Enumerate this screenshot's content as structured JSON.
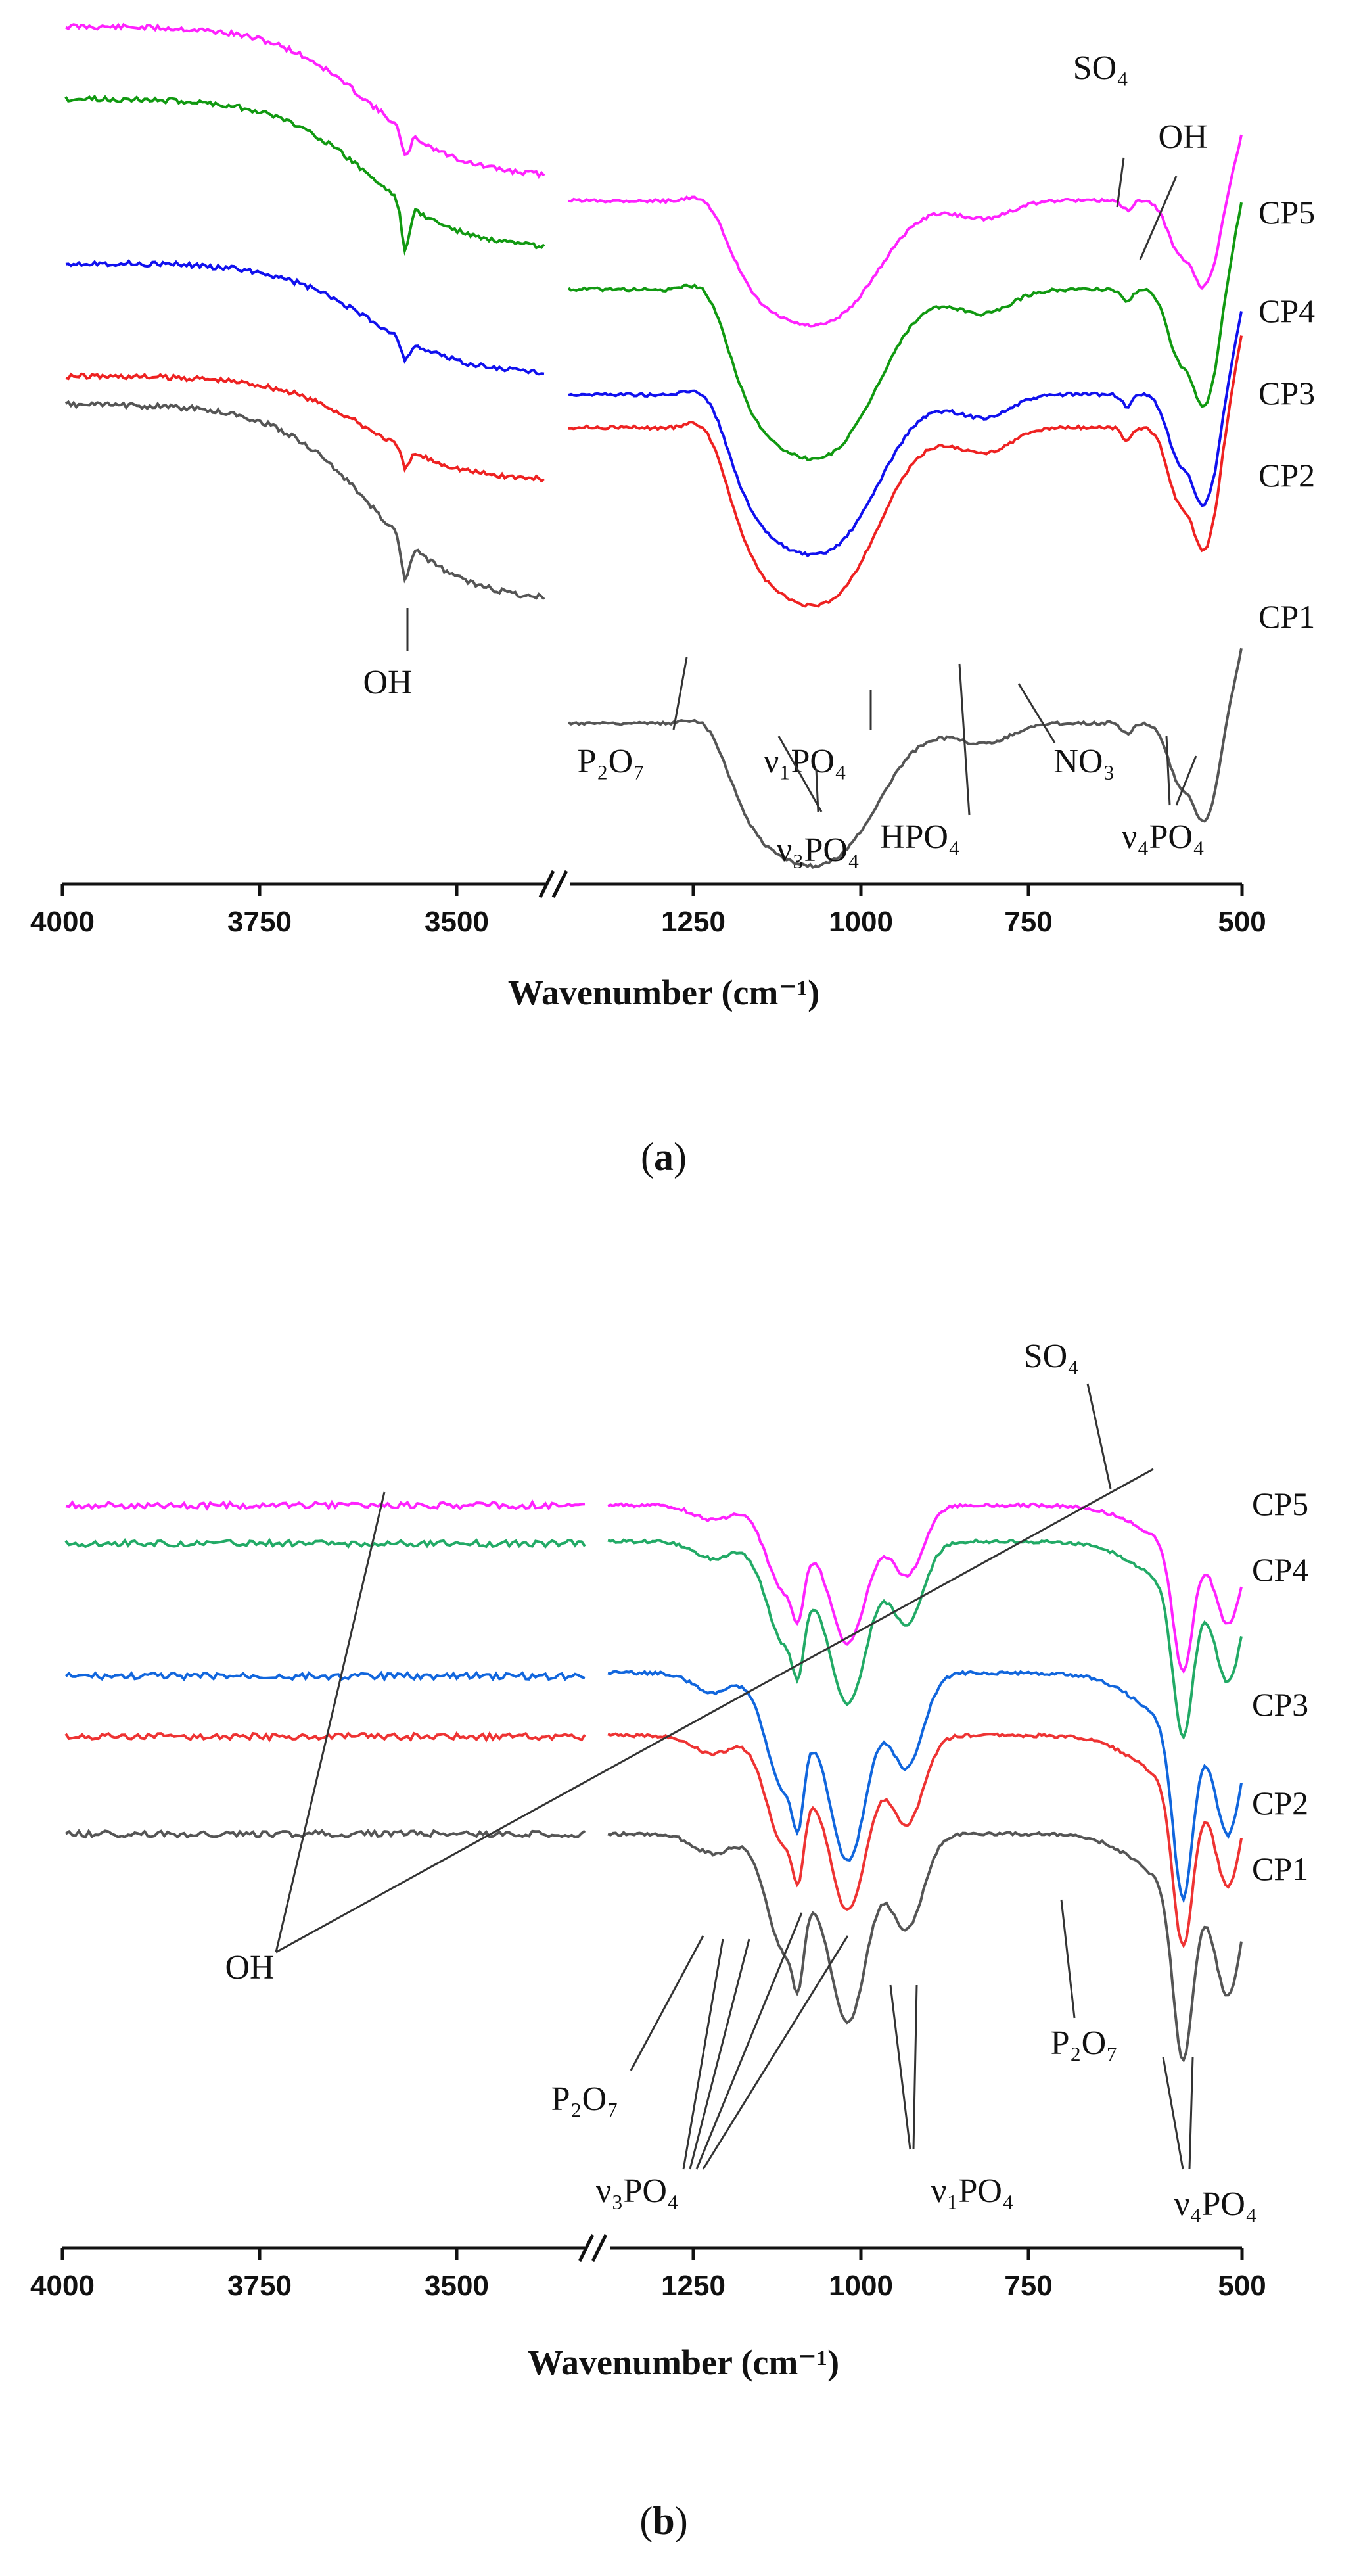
{
  "chart_data": [
    {
      "type": "line",
      "panel": "(a)",
      "panel_bold": "a",
      "xlabel": "Wavenumber (cm⁻¹)",
      "xticks": [
        "4000",
        "3750",
        "3500",
        "1250",
        "1000",
        "750",
        "500"
      ],
      "axis_break": "between 3400 and 1350 cm⁻¹",
      "series": [
        "CP5",
        "CP4",
        "CP3",
        "CP2",
        "CP1"
      ],
      "colors": {
        "CP5": "#ff22ff",
        "CP4": "#119911",
        "CP3": "#1111ee",
        "CP2": "#ee2222",
        "CP1": "#555555"
      },
      "annotations": [
        "SO₄",
        "OH",
        "OH",
        "P₂O₇",
        "ν₁PO₄",
        "NO₃",
        "ν₃PO₄",
        "HPO₄",
        "ν₄PO₄"
      ]
    },
    {
      "type": "line",
      "panel": "(b)",
      "panel_bold": "b",
      "xlabel": "Wavenumber (cm⁻¹)",
      "xticks": [
        "4000",
        "3750",
        "3500",
        "1250",
        "1000",
        "750",
        "500"
      ],
      "axis_break": "between 3400 and 1350 cm⁻¹",
      "series": [
        "CP5",
        "CP4",
        "CP3",
        "CP2",
        "CP1"
      ],
      "colors": {
        "CP5": "#ff22ff",
        "CP4": "#22aa66",
        "CP3": "#1166dd",
        "CP2": "#ee3333",
        "CP1": "#555555"
      },
      "annotations": [
        "SO₄",
        "OH",
        "P₂O₇",
        "P₂O₇",
        "ν₃PO₄",
        "ν₁PO₄",
        "ν₄PO₄"
      ]
    }
  ]
}
